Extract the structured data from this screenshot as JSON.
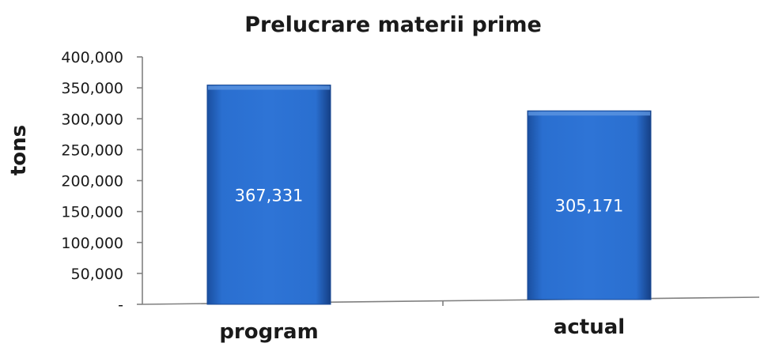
{
  "chart_data": {
    "type": "bar",
    "title": "Prelucrare materii prime",
    "ylabel": "tons",
    "xlabel": "",
    "categories": [
      "program",
      "actual"
    ],
    "values": [
      367331,
      305171
    ],
    "data_labels": [
      "367,331",
      "305,171"
    ],
    "ylim": [
      0,
      400000
    ],
    "yticks": [
      0,
      50000,
      100000,
      150000,
      200000,
      250000,
      300000,
      350000,
      400000
    ],
    "ytick_labels": [
      "-",
      "50,000",
      "100,000",
      "150,000",
      "200,000",
      "250,000",
      "300,000",
      "350,000",
      "400,000"
    ],
    "grid": false,
    "legend": "none",
    "bar_color": "#2266c4"
  }
}
